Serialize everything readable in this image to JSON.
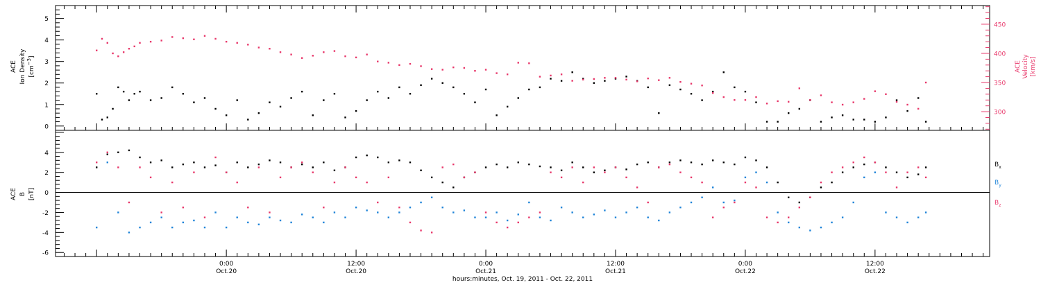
{
  "chart_data": [
    {
      "type": "scatter",
      "panel": "top",
      "left_axis": {
        "label_lines": [
          "ACE",
          "Ion Density"
        ],
        "unit_base": "[cm",
        "unit_sup": "−3",
        "unit_close": "]",
        "range": [
          -0.2,
          5.6
        ],
        "ticks": [
          0,
          1,
          2,
          3,
          4,
          5
        ]
      },
      "right_axis": {
        "label_lines": [
          "ACE",
          "Velocity"
        ],
        "unit": "[km/s]",
        "range": [
          268,
          482
        ],
        "ticks": [
          300,
          350,
          400,
          450
        ]
      },
      "grid": false,
      "series": [
        {
          "name": "",
          "axis": "left",
          "color": "#000000",
          "x": [
            0.0,
            0.5,
            1.0,
            1.5,
            2.0,
            2.5,
            3.0,
            3.5,
            4.0,
            5.0,
            6.0,
            7.0,
            8.0,
            9.0,
            10.0,
            11.0,
            12.0,
            13.0,
            14.0,
            15.0,
            16.0,
            17.0,
            18.0,
            19.0,
            20.0,
            21.0,
            22.0,
            23.0,
            24.0,
            25.0,
            26.0,
            27.0,
            28.0,
            29.0,
            30.0,
            31.0,
            32.0,
            33.0,
            34.0,
            35.0,
            36.0,
            37.0,
            38.0,
            39.0,
            40.0,
            41.0,
            42.0,
            43.0,
            44.0,
            45.0,
            46.0,
            47.0,
            48.0,
            49.0,
            50.0,
            51.0,
            52.0,
            53.0,
            54.0,
            55.0,
            56.0,
            57.0,
            58.0,
            59.0,
            60.0,
            61.0,
            62.0,
            63.0,
            64.0,
            65.0,
            66.0,
            67.0,
            68.0,
            69.0,
            70.0,
            71.0,
            72.0,
            73.0,
            74.0,
            75.0,
            76.0,
            76.7
          ],
          "y": [
            1.5,
            0.3,
            0.4,
            0.8,
            1.8,
            1.6,
            1.2,
            1.5,
            1.6,
            1.2,
            1.3,
            1.8,
            1.5,
            1.1,
            1.3,
            0.8,
            0.5,
            1.2,
            0.3,
            0.6,
            1.1,
            0.9,
            1.3,
            1.6,
            0.5,
            1.2,
            1.5,
            0.4,
            0.7,
            1.2,
            1.6,
            1.3,
            1.8,
            1.5,
            1.9,
            2.2,
            2.0,
            1.8,
            1.5,
            1.1,
            1.7,
            0.5,
            0.9,
            1.3,
            1.7,
            1.8,
            2.2,
            2.1,
            2.5,
            2.2,
            2.0,
            2.1,
            2.2,
            2.3,
            2.1,
            1.8,
            0.6,
            1.9,
            1.7,
            1.5,
            1.2,
            1.6,
            2.5,
            1.8,
            1.6,
            1.1,
            0.2,
            0.2,
            0.6,
            0.8,
            1.2,
            0.2,
            0.4,
            0.5,
            0.3,
            0.3,
            0.2,
            0.4,
            1.2,
            0.7,
            1.3,
            0.2
          ]
        },
        {
          "name": "",
          "axis": "right",
          "color": "#e8376a",
          "x": [
            0.0,
            0.5,
            1.0,
            1.5,
            2.0,
            2.5,
            3.0,
            3.5,
            4.0,
            5.0,
            6.0,
            7.0,
            8.0,
            9.0,
            10.0,
            11.0,
            12.0,
            13.0,
            14.0,
            15.0,
            16.0,
            17.0,
            18.0,
            19.0,
            20.0,
            21.0,
            22.0,
            23.0,
            24.0,
            25.0,
            26.0,
            27.0,
            28.0,
            29.0,
            30.0,
            31.0,
            32.0,
            33.0,
            34.0,
            35.0,
            36.0,
            37.0,
            38.0,
            39.0,
            40.0,
            41.0,
            42.0,
            43.0,
            44.0,
            45.0,
            46.0,
            47.0,
            48.0,
            49.0,
            50.0,
            51.0,
            52.0,
            53.0,
            54.0,
            55.0,
            56.0,
            57.0,
            58.0,
            59.0,
            60.0,
            61.0,
            62.0,
            63.0,
            64.0,
            65.0,
            66.0,
            67.0,
            68.0,
            69.0,
            70.0,
            71.0,
            72.0,
            73.0,
            74.0,
            75.0,
            76.0,
            76.7
          ],
          "y": [
            405,
            425,
            418,
            400,
            395,
            402,
            408,
            412,
            418,
            420,
            422,
            428,
            426,
            424,
            430,
            425,
            420,
            418,
            415,
            410,
            408,
            402,
            398,
            392,
            396,
            402,
            404,
            395,
            393,
            398,
            386,
            384,
            380,
            382,
            378,
            373,
            372,
            376,
            375,
            370,
            372,
            366,
            364,
            384,
            383,
            360,
            362,
            364,
            353,
            355,
            356,
            358,
            358,
            355,
            352,
            357,
            354,
            358,
            351,
            348,
            345,
            332,
            325,
            320,
            320,
            325,
            314,
            318,
            317,
            340,
            320,
            328,
            316,
            312,
            316,
            322,
            335,
            330,
            317,
            312,
            305,
            350
          ]
        }
      ]
    },
    {
      "type": "scatter",
      "panel": "bottom",
      "left_axis": {
        "label_lines": [
          "ACE",
          "B"
        ],
        "unit": "[nT]",
        "range": [
          -6.4,
          6.2
        ],
        "ticks": [
          -6,
          -4,
          -2,
          0,
          2,
          4
        ]
      },
      "zero_line": true,
      "grid": false,
      "x_axis": {
        "label": "hours:minutes, Oct. 19, 2011 - Oct. 22, 2011",
        "range": [
          -3.8,
          82.6
        ],
        "ticks": [
          12,
          24,
          36,
          48,
          60,
          72
        ],
        "tick_labels": [
          {
            "x": 12,
            "time": "0:00",
            "date": "Oct.20"
          },
          {
            "x": 24,
            "time": "12:00",
            "date": "Oct.20"
          },
          {
            "x": 36,
            "time": "0:00",
            "date": "Oct.21"
          },
          {
            "x": 48,
            "time": "12:00",
            "date": "Oct.21"
          },
          {
            "x": 60,
            "time": "0:00",
            "date": "Oct.22"
          },
          {
            "x": 72,
            "time": "12:00",
            "date": "Oct.22"
          }
        ]
      },
      "legend_position": "right",
      "series": [
        {
          "name_base": "B",
          "name_sub": "x",
          "color": "#000000",
          "x": [
            0.0,
            1.0,
            2.0,
            3.0,
            4.0,
            5.0,
            6.0,
            7.0,
            8.0,
            9.0,
            10.0,
            11.0,
            12.0,
            13.0,
            14.0,
            15.0,
            16.0,
            17.0,
            18.0,
            19.0,
            20.0,
            21.0,
            22.0,
            23.0,
            24.0,
            25.0,
            26.0,
            27.0,
            28.0,
            29.0,
            30.0,
            31.0,
            32.0,
            33.0,
            34.0,
            35.0,
            36.0,
            37.0,
            38.0,
            39.0,
            40.0,
            41.0,
            42.0,
            43.0,
            44.0,
            45.0,
            46.0,
            47.0,
            48.0,
            49.0,
            50.0,
            51.0,
            52.0,
            53.0,
            54.0,
            55.0,
            56.0,
            57.0,
            58.0,
            59.0,
            60.0,
            61.0,
            62.0,
            63.0,
            64.0,
            65.0,
            66.0,
            67.0,
            68.0,
            69.0,
            70.0,
            71.0,
            72.0,
            73.0,
            74.0,
            75.0,
            76.0,
            76.7
          ],
          "y": [
            2.5,
            3.8,
            4.0,
            4.2,
            3.5,
            3.0,
            3.2,
            2.5,
            2.8,
            3.0,
            2.5,
            2.7,
            2.0,
            3.0,
            2.5,
            2.8,
            3.2,
            3.0,
            2.5,
            2.8,
            2.5,
            3.0,
            2.2,
            2.5,
            3.5,
            3.7,
            3.5,
            3.0,
            3.2,
            3.0,
            2.2,
            1.5,
            1.0,
            0.5,
            1.5,
            2.0,
            2.5,
            2.8,
            2.5,
            3.0,
            2.8,
            2.6,
            2.5,
            2.2,
            3.0,
            2.5,
            2.0,
            2.2,
            2.5,
            2.3,
            2.8,
            3.0,
            2.5,
            3.0,
            3.2,
            3.0,
            2.8,
            3.2,
            3.0,
            2.8,
            3.5,
            3.2,
            2.5,
            1.0,
            -0.5,
            -1.0,
            -0.5,
            0.5,
            1.0,
            2.0,
            2.5,
            2.8,
            3.0,
            2.5,
            2.0,
            1.5,
            1.8,
            2.5
          ]
        },
        {
          "name_base": "B",
          "name_sub": "y",
          "color": "#1f84d8",
          "x": [
            0.0,
            1.0,
            2.0,
            3.0,
            4.0,
            5.0,
            6.0,
            7.0,
            8.0,
            9.0,
            10.0,
            11.0,
            12.0,
            13.0,
            14.0,
            15.0,
            16.0,
            17.0,
            18.0,
            19.0,
            20.0,
            21.0,
            22.0,
            23.0,
            24.0,
            25.0,
            26.0,
            27.0,
            28.0,
            29.0,
            30.0,
            31.0,
            32.0,
            33.0,
            34.0,
            35.0,
            36.0,
            37.0,
            38.0,
            39.0,
            40.0,
            41.0,
            42.0,
            43.0,
            44.0,
            45.0,
            46.0,
            47.0,
            48.0,
            49.0,
            50.0,
            51.0,
            52.0,
            53.0,
            54.0,
            55.0,
            56.0,
            57.0,
            58.0,
            59.0,
            60.0,
            61.0,
            62.0,
            63.0,
            64.0,
            65.0,
            66.0,
            67.0,
            68.0,
            69.0,
            70.0,
            71.0,
            72.0,
            73.0,
            74.0,
            75.0,
            76.0,
            76.7
          ],
          "y": [
            -3.5,
            3.0,
            -2.0,
            -4.0,
            -3.5,
            -3.0,
            -2.5,
            -3.5,
            -3.0,
            -2.8,
            -3.5,
            -2.0,
            -3.5,
            -2.5,
            -3.0,
            -3.2,
            -2.5,
            -2.8,
            -3.0,
            -2.2,
            -2.5,
            -3.0,
            -2.0,
            -2.5,
            -1.5,
            -1.8,
            -2.0,
            -2.5,
            -2.0,
            -1.5,
            -1.0,
            -0.5,
            -1.5,
            -2.0,
            -1.8,
            -2.5,
            -2.5,
            -2.0,
            -2.8,
            -2.2,
            -1.0,
            -2.5,
            -2.8,
            -1.5,
            -2.0,
            -2.5,
            -2.2,
            -1.8,
            -2.5,
            -2.0,
            -1.5,
            -2.5,
            -2.8,
            -2.0,
            -1.5,
            -1.0,
            -0.5,
            0.5,
            -1.0,
            -0.8,
            1.5,
            2.0,
            1.0,
            -2.0,
            -3.0,
            -3.5,
            -3.8,
            -3.5,
            -3.0,
            -2.5,
            -1.0,
            1.5,
            2.0,
            -2.0,
            -2.5,
            -3.0,
            -2.5,
            -2.0
          ]
        },
        {
          "name_base": "B",
          "name_sub": "z",
          "color": "#e8376a",
          "x": [
            0.0,
            1.0,
            2.0,
            3.0,
            4.0,
            5.0,
            6.0,
            7.0,
            8.0,
            9.0,
            10.0,
            11.0,
            12.0,
            13.0,
            14.0,
            15.0,
            16.0,
            17.0,
            18.0,
            19.0,
            20.0,
            21.0,
            22.0,
            23.0,
            24.0,
            25.0,
            26.0,
            27.0,
            28.0,
            29.0,
            30.0,
            31.0,
            32.0,
            33.0,
            34.0,
            35.0,
            36.0,
            37.0,
            38.0,
            39.0,
            40.0,
            41.0,
            42.0,
            43.0,
            44.0,
            45.0,
            46.0,
            47.0,
            48.0,
            49.0,
            50.0,
            51.0,
            52.0,
            53.0,
            54.0,
            55.0,
            56.0,
            57.0,
            58.0,
            59.0,
            60.0,
            61.0,
            62.0,
            63.0,
            64.0,
            65.0,
            66.0,
            67.0,
            68.0,
            69.0,
            70.0,
            71.0,
            72.0,
            73.0,
            74.0,
            75.0,
            76.0,
            76.7
          ],
          "y": [
            3.0,
            4.0,
            2.5,
            -1.0,
            2.5,
            1.5,
            -2.0,
            1.0,
            -1.5,
            2.0,
            -2.5,
            3.5,
            2.0,
            1.0,
            -1.5,
            2.5,
            -2.0,
            1.5,
            2.5,
            3.0,
            2.0,
            -1.5,
            1.0,
            2.5,
            1.5,
            1.0,
            -1.0,
            1.5,
            -1.5,
            -3.0,
            -3.8,
            -4.0,
            2.5,
            2.8,
            1.5,
            2.0,
            -2.0,
            -3.0,
            -3.5,
            -3.0,
            -2.5,
            -2.0,
            2.0,
            1.5,
            2.5,
            1.0,
            2.5,
            2.0,
            2.5,
            1.5,
            0.5,
            -1.0,
            2.5,
            2.8,
            2.0,
            1.5,
            1.0,
            -2.5,
            -1.5,
            -1.0,
            1.0,
            0.5,
            -2.5,
            -3.0,
            -2.5,
            -1.5,
            -0.5,
            1.0,
            2.0,
            2.5,
            3.0,
            3.5,
            3.0,
            2.0,
            0.5,
            2.0,
            2.5,
            1.5
          ]
        }
      ]
    }
  ]
}
